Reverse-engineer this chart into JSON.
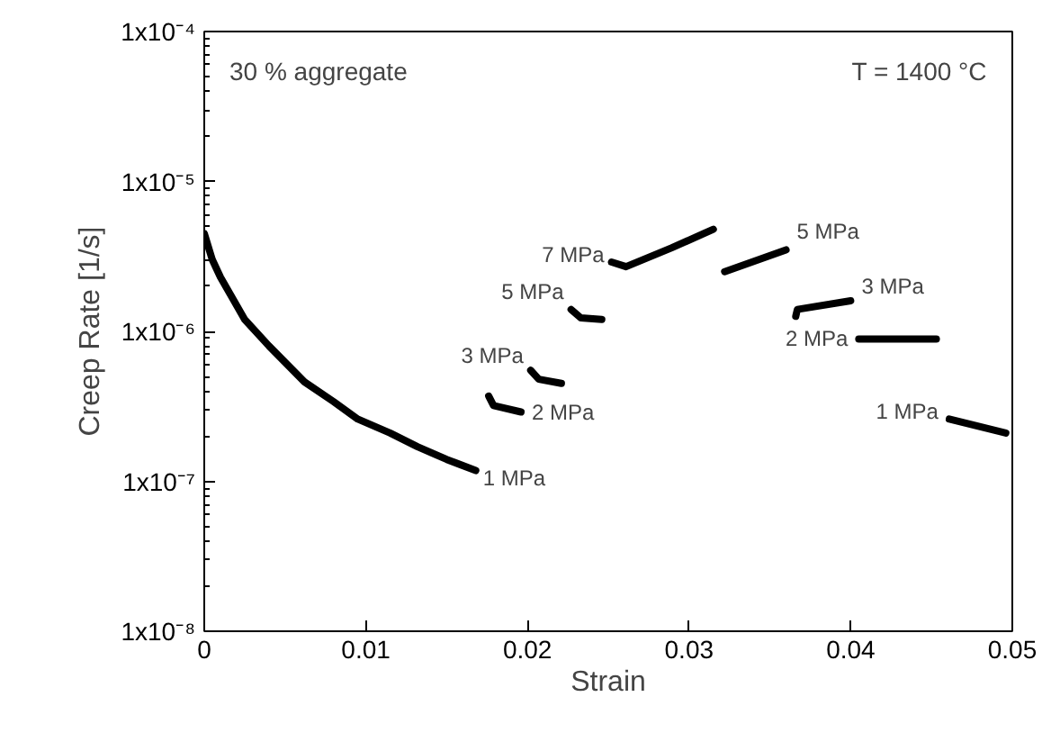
{
  "chart_data": {
    "type": "line",
    "xlabel": "Strain",
    "ylabel": "Creep Rate [1/s]",
    "log": "y",
    "xlim": [
      0,
      0.05
    ],
    "xticks": [
      0,
      0.01,
      0.02,
      0.03,
      0.04,
      0.05
    ],
    "ylim": [
      1e-08,
      0.0001
    ],
    "yticks": [
      {
        "value": 1e-08,
        "label": "1x10⁻⁸"
      },
      {
        "value": 1e-07,
        "label": "1x10⁻⁷"
      },
      {
        "value": 1e-06,
        "label": "1x10⁻⁶"
      },
      {
        "value": 1e-05,
        "label": "1x10⁻⁵"
      },
      {
        "value": 0.0001,
        "label": "1x10⁻⁴"
      }
    ],
    "grid": false,
    "legend": false,
    "series": [
      {
        "name": "1 MPa",
        "color": "#000000",
        "x": [
          0,
          0.0005,
          0.001,
          0.0025,
          0.004,
          0.0062,
          0.008,
          0.0095,
          0.0115,
          0.0132,
          0.015,
          0.0168
        ],
        "values": [
          4.5e-06,
          3e-06,
          2.3e-06,
          1.2e-06,
          8e-07,
          4.6e-07,
          3.4e-07,
          2.6e-07,
          2.1e-07,
          1.7e-07,
          1.4e-07,
          1.18e-07
        ]
      },
      {
        "name": "2 MPa",
        "color": "#000000",
        "x": [
          0.0176,
          0.0179,
          0.0196
        ],
        "values": [
          3.7e-07,
          3.2e-07,
          2.9e-07
        ]
      },
      {
        "name": "3 MPa",
        "color": "#000000",
        "x": [
          0.0202,
          0.0207,
          0.0221
        ],
        "values": [
          5.5e-07,
          4.8e-07,
          4.5e-07
        ]
      },
      {
        "name": "5 MPa",
        "color": "#000000",
        "x": [
          0.0227,
          0.0233,
          0.0246
        ],
        "values": [
          1.4e-06,
          1.23e-06,
          1.2e-06
        ]
      },
      {
        "name": "7 MPa",
        "color": "#000000",
        "x": [
          0.0252,
          0.0261,
          0.0289,
          0.0315
        ],
        "values": [
          2.9e-06,
          2.7e-06,
          3.6e-06,
          4.8e-06
        ]
      },
      {
        "name": "5 MPa",
        "color": "#000000",
        "x": [
          0.0322,
          0.036
        ],
        "values": [
          2.5e-06,
          3.5e-06
        ]
      },
      {
        "name": "3 MPa",
        "color": "#000000",
        "x": [
          0.0366,
          0.0367,
          0.04
        ],
        "values": [
          1.26e-06,
          1.4e-06,
          1.6e-06
        ]
      },
      {
        "name": "2 MPa",
        "color": "#000000",
        "x": [
          0.0405,
          0.0453
        ],
        "values": [
          8.9e-07,
          8.9e-07
        ]
      },
      {
        "name": "1 MPa",
        "color": "#000000",
        "x": [
          0.0461,
          0.0496
        ],
        "values": [
          2.6e-07,
          2.1e-07
        ]
      }
    ],
    "annotations": [
      "30 % aggregate",
      "T = 1400 °C"
    ]
  }
}
